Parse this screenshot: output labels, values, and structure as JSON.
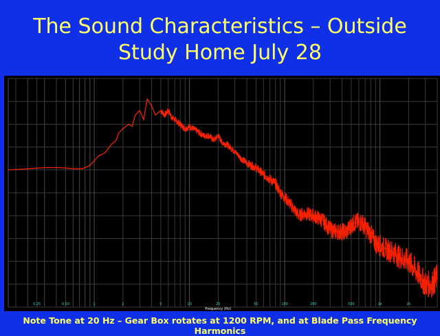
{
  "slide": {
    "title_line1": "The Sound Characteristics – Outside",
    "title_line2": "Study Home July 28",
    "footnote": "Note Tone at 20 Hz – Gear Box rotates at 1200 RPM, and at Blade Pass Frequency Harmonics"
  },
  "colors": {
    "background": "#1030e8",
    "title_text": "#ffff66",
    "plot_background": "#000000",
    "grid": "#3a3a3a",
    "series": "#ff2200",
    "tick_labels": "#33cccc"
  },
  "chart_data": {
    "type": "line",
    "title": "",
    "xlabel": "Frequency (Hz)",
    "ylabel": "",
    "x_scale": "log",
    "xlim": [
      0.125,
      4000
    ],
    "x_ticks": [
      0.25,
      0.5,
      1,
      2,
      5,
      10,
      20,
      50,
      100,
      200,
      500,
      1000,
      2000
    ],
    "x_tick_labels": [
      "0.25",
      "0.50",
      "1",
      "2",
      "5",
      "10",
      "20",
      "50",
      "100",
      "200",
      "500",
      "1k",
      "2k"
    ],
    "ylim": [
      0,
      100
    ],
    "grid": true,
    "legend": "none",
    "series": [
      {
        "name": "",
        "x": [
          0.125,
          0.2,
          0.3,
          0.45,
          0.6,
          0.75,
          0.9,
          1.0,
          1.1,
          1.3,
          1.5,
          1.7,
          1.8,
          2.0,
          2.3,
          2.5,
          2.7,
          3.0,
          3.3,
          3.6,
          4.0,
          4.4,
          5.0,
          5.5,
          6.0,
          6.5,
          7.0,
          8.0,
          9.0,
          10,
          12,
          14,
          16,
          18,
          20,
          22,
          25,
          30,
          35,
          40,
          50,
          60,
          70,
          80,
          90,
          100,
          120,
          140,
          160,
          200,
          250,
          300,
          350,
          400,
          450,
          500,
          550,
          600,
          650,
          700,
          800,
          900,
          1000,
          1200,
          1400,
          1600,
          2000,
          2500,
          3000,
          3500,
          4000
        ],
        "y": [
          60,
          60.5,
          61,
          61,
          60.5,
          60.5,
          62,
          64,
          66,
          67.5,
          71,
          73,
          76,
          78,
          80,
          79,
          84,
          86,
          82,
          91,
          88,
          84,
          86,
          84,
          86,
          83,
          82,
          80,
          78,
          79,
          77,
          75,
          75,
          73,
          75,
          72,
          71,
          68,
          65,
          63,
          61,
          58,
          56,
          54,
          50,
          48,
          44,
          40,
          41,
          40,
          38,
          34,
          33,
          33,
          33,
          36,
          37,
          37,
          37,
          35,
          32,
          28,
          27,
          25,
          24,
          22,
          20,
          15,
          10,
          10,
          13
        ]
      }
    ]
  }
}
